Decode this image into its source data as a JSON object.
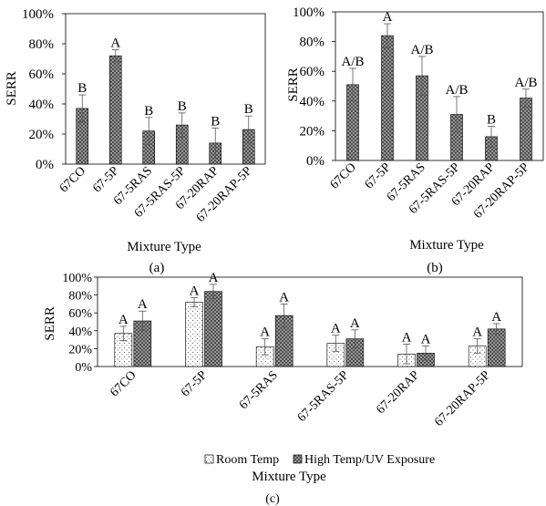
{
  "chart_data": [
    {
      "type": "bar",
      "panel_label": "(a)",
      "xlabel": "Mixture Type",
      "ylabel": "SERR",
      "ylim": [
        0,
        100
      ],
      "yticks": [
        "0%",
        "20%",
        "40%",
        "60%",
        "80%",
        "100%"
      ],
      "grid": false,
      "categories": [
        "67CO",
        "67-5P",
        "67-5RAS",
        "67-5RAS-5P",
        "67-20RAP",
        "67-20RAP-5P"
      ],
      "values": [
        37,
        72,
        22,
        26,
        14,
        23
      ],
      "errors": [
        9,
        4,
        9,
        8,
        10,
        9
      ],
      "labels": [
        "B",
        "A",
        "B",
        "B",
        "B",
        "B"
      ],
      "fill": "crosshatch-gray"
    },
    {
      "type": "bar",
      "panel_label": "(b)",
      "xlabel": "Mixture Type",
      "ylabel": "SERR",
      "ylim": [
        0,
        100
      ],
      "yticks": [
        "0%",
        "20%",
        "40%",
        "60%",
        "80%",
        "100%"
      ],
      "grid": false,
      "categories": [
        "67CO",
        "67-5P",
        "67-5RAS",
        "67-5RAS-5P",
        "67-20RAP",
        "67-20RAP-5P"
      ],
      "values": [
        51,
        84,
        57,
        31,
        16,
        42
      ],
      "errors": [
        11,
        8,
        13,
        12,
        7,
        6
      ],
      "labels": [
        "A/B",
        "A",
        "A/B",
        "A/B",
        "B",
        "A/B"
      ],
      "fill": "crosshatch-gray"
    },
    {
      "type": "bar",
      "panel_label": "(c)",
      "xlabel": "Mixture Type",
      "ylabel": "SERR",
      "ylim": [
        0,
        100
      ],
      "yticks": [
        "0%",
        "20%",
        "40%",
        "60%",
        "80%",
        "100%"
      ],
      "grid": false,
      "legend_position": "bottom",
      "categories": [
        "67CO",
        "67-5P",
        "67-5RAS",
        "67-5RAS-5P",
        "67-20RAP",
        "67-20RAP-5P"
      ],
      "series": [
        {
          "name": "Room Temp",
          "values": [
            37,
            72,
            22,
            26,
            14,
            23
          ],
          "errors": [
            8,
            5,
            9,
            9,
            11,
            8
          ],
          "labels": [
            "A",
            "A",
            "A",
            "A",
            "A",
            "A"
          ],
          "fill": "dotted-white"
        },
        {
          "name": "High Temp/UV Exposure",
          "values": [
            51,
            84,
            57,
            31,
            15,
            42
          ],
          "errors": [
            11,
            8,
            13,
            10,
            8,
            6
          ],
          "labels": [
            "A",
            "A",
            "A",
            "A",
            "A",
            "A"
          ],
          "fill": "crosshatch-gray"
        }
      ]
    }
  ]
}
